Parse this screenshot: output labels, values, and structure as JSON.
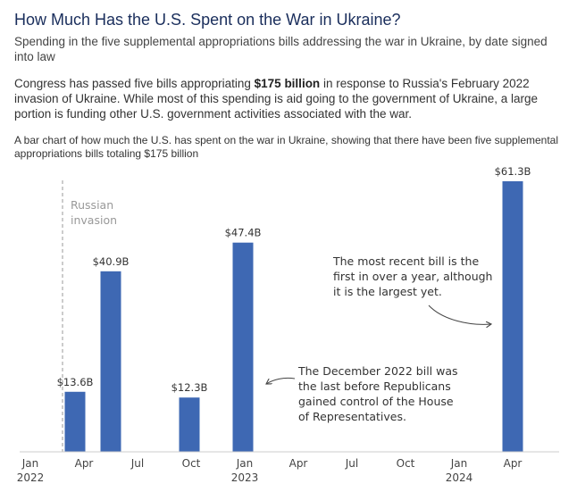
{
  "title": "How Much Has the U.S. Spent on the War in Ukraine?",
  "subtitle": "Spending in the five supplemental appropriations bills addressing the war in Ukraine, by date signed into law",
  "intro": {
    "before": "Congress has passed five bills appropriating ",
    "bold": "$175 billion",
    "after": " in response to Russia's February 2022 invasion of Ukraine. While most of this spending is aid going to the government of Ukraine, a large portion is funding other U.S. government activities associated with the war."
  },
  "description": "A bar chart of how much the U.S. has spent on the war in Ukraine, showing that there have been five supplemental appropriations bills totaling $175 billion",
  "colors": {
    "bar": "#3e68b3",
    "axis": "#cccccc",
    "invasion_line": "#bbbbbb",
    "invasion_text": "#999999",
    "annotation": "#444444",
    "title": "#1a2e5c"
  },
  "chart_data": {
    "type": "bar",
    "title": "How Much Has the U.S. Spent on the War in Ukraine?",
    "xlabel": "",
    "ylabel": "",
    "grid": false,
    "unit": "billion USD",
    "x_range_months": [
      0,
      28
    ],
    "ylim": [
      0,
      61.3
    ],
    "bars": [
      {
        "month": 2.5,
        "value": 13.6,
        "label": "$13.6B"
      },
      {
        "month": 4.5,
        "value": 40.9,
        "label": "$40.9B"
      },
      {
        "month": 8.9,
        "value": 12.3,
        "label": "$12.3B"
      },
      {
        "month": 11.9,
        "value": 47.4,
        "label": "$47.4B"
      },
      {
        "month": 27.0,
        "value": 61.3,
        "label": "$61.3B"
      }
    ],
    "ticks": [
      {
        "month": 0,
        "label": "Jan",
        "year": "2022"
      },
      {
        "month": 3,
        "label": "Apr",
        "year": ""
      },
      {
        "month": 6,
        "label": "Jul",
        "year": ""
      },
      {
        "month": 9,
        "label": "Oct",
        "year": ""
      },
      {
        "month": 12,
        "label": "Jan",
        "year": "2023"
      },
      {
        "month": 15,
        "label": "Apr",
        "year": ""
      },
      {
        "month": 18,
        "label": "Jul",
        "year": ""
      },
      {
        "month": 21,
        "label": "Oct",
        "year": ""
      },
      {
        "month": 24,
        "label": "Jan",
        "year": "2024"
      },
      {
        "month": 27,
        "label": "Apr",
        "year": ""
      }
    ],
    "invasion": {
      "month": 1.8,
      "lines": [
        "Russian",
        "invasion"
      ]
    },
    "annotations": [
      {
        "id": "recent",
        "lines": [
          "The most recent bill is the",
          "first in over a year, although",
          "it is the largest yet."
        ]
      },
      {
        "id": "december",
        "lines": [
          "The December 2022 bill was",
          "the last before Republicans",
          "gained control of the House",
          "of Representatives."
        ]
      }
    ]
  }
}
